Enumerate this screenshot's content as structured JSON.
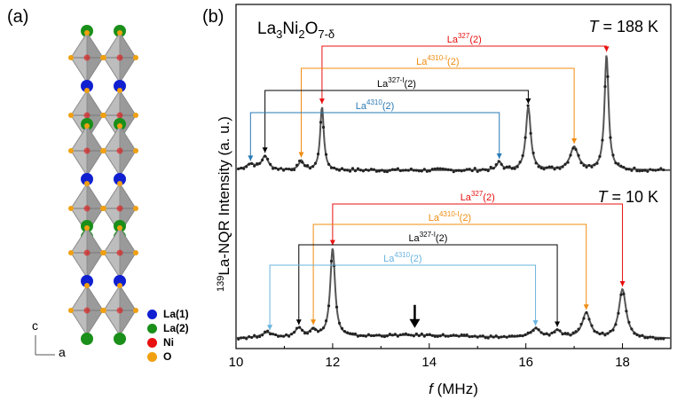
{
  "panels": {
    "a": "(a)",
    "b": "(b)"
  },
  "legend": [
    {
      "label": "La(1)",
      "color": "#1020d0"
    },
    {
      "label": "La(2)",
      "color": "#1a8f1a"
    },
    {
      "label": "Ni",
      "color": "#e81010"
    },
    {
      "label": "O",
      "color": "#f0a010"
    }
  ],
  "axes_labels": {
    "c": "c",
    "a": "a"
  },
  "chart_data": {
    "type": "line",
    "compound": {
      "base": "La",
      "s1": "3",
      "mid": "Ni",
      "s2": "2",
      "mid2": "O",
      "s3": "7-δ"
    },
    "xlabel": {
      "f": "f",
      "unit": "(MHz)"
    },
    "ylabel": {
      "sup": "139",
      "text": "La-NQR Intensity (a. u.)"
    },
    "xlim": [
      10,
      19
    ],
    "xticks": [
      "10",
      "12",
      "14",
      "16",
      "18"
    ],
    "temperatures": [
      {
        "T": "T",
        "value": "= 188 K"
      },
      {
        "T": "T",
        "value": "= 10 K"
      }
    ],
    "panels": [
      {
        "name": "188 K",
        "peaks": [
          [
            10.3,
            0.05,
            0.12
          ],
          [
            10.6,
            0.12,
            0.08
          ],
          [
            11.35,
            0.08,
            0.06
          ],
          [
            11.78,
            0.55,
            0.045
          ],
          [
            15.45,
            0.07,
            0.06
          ],
          [
            16.05,
            0.55,
            0.06
          ],
          [
            17.0,
            0.2,
            0.1
          ],
          [
            17.67,
            1.0,
            0.05
          ]
        ],
        "assignments": [
          {
            "label": "La",
            "sup": "327",
            "suffix": "(2)",
            "color": "#e81010",
            "x1": 11.78,
            "x2": 17.67,
            "level": 0
          },
          {
            "label": "La",
            "sup": "4310-I",
            "suffix": "(2)",
            "color": "#f08c10",
            "x1": 11.35,
            "x2": 17.0,
            "level": 1
          },
          {
            "label": "La",
            "sup": "327-I",
            "suffix": "(2)",
            "color": "#000000",
            "x1": 10.6,
            "x2": 16.05,
            "level": 2
          },
          {
            "label": "La",
            "sup": "4310",
            "suffix": "(2)",
            "color": "#2a7ab5",
            "x1": 10.3,
            "x2": 15.45,
            "level": 3
          }
        ]
      },
      {
        "name": "10 K",
        "peaks": [
          [
            10.65,
            0.06,
            0.15
          ],
          [
            11.3,
            0.1,
            0.1
          ],
          [
            11.6,
            0.08,
            0.08
          ],
          [
            12.0,
            1.0,
            0.06
          ],
          [
            13.7,
            0.04,
            1.5
          ],
          [
            16.2,
            0.1,
            0.12
          ],
          [
            16.65,
            0.08,
            0.1
          ],
          [
            17.25,
            0.28,
            0.1
          ],
          [
            18.0,
            0.55,
            0.09
          ]
        ],
        "assignments": [
          {
            "label": "La",
            "sup": "327",
            "suffix": "(2)",
            "color": "#e81010",
            "x1": 12.0,
            "x2": 18.0,
            "level": 0
          },
          {
            "label": "La",
            "sup": "4310-I",
            "suffix": "(2)",
            "color": "#f08c10",
            "x1": 11.6,
            "x2": 17.25,
            "level": 1
          },
          {
            "label": "La",
            "sup": "327-I",
            "suffix": "(2)",
            "color": "#000000",
            "x1": 11.3,
            "x2": 16.65,
            "level": 2
          },
          {
            "label": "La",
            "sup": "4310",
            "suffix": "(2)",
            "color": "#6ab4e0",
            "x1": 10.7,
            "x2": 16.2,
            "level": 3
          }
        ],
        "arrow_x": 13.7
      }
    ]
  }
}
